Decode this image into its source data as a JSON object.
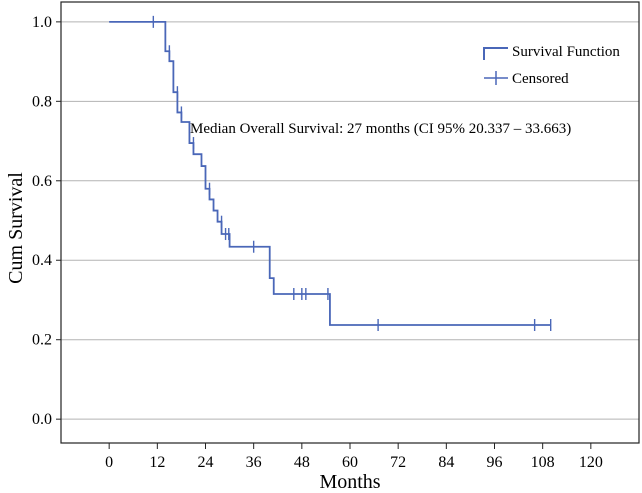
{
  "colors": {
    "line": "#4a67b8",
    "grid": "#b3b3b3",
    "frame": "#222222",
    "background": "#ffffff"
  },
  "chart_data": {
    "type": "line",
    "subtype": "kaplan-meier",
    "title": "",
    "xlabel": "Months",
    "ylabel": "Cum Survival",
    "xlim": [
      -12,
      132
    ],
    "ylim": [
      -0.06,
      1.05
    ],
    "x_ticks": [
      0,
      12,
      24,
      36,
      48,
      60,
      72,
      84,
      96,
      108,
      120
    ],
    "x_tick_labels": [
      "0",
      "12",
      "24",
      "36",
      "48",
      "60",
      "72",
      "84",
      "96",
      "108",
      "120"
    ],
    "y_ticks": [
      0.0,
      0.2,
      0.4,
      0.6,
      0.8,
      1.0
    ],
    "y_tick_labels": [
      "0.0",
      "0.2",
      "0.4",
      "0.6",
      "0.8",
      "1.0"
    ],
    "grid": "horizontal",
    "legend": {
      "position": "top-right",
      "entries": [
        "Survival Function",
        "Censored"
      ]
    },
    "annotation": "Median Overall Survival: 27 months (CI 95% 20.337 – 33.663)",
    "series": [
      {
        "name": "Survival Function",
        "steps": [
          {
            "x": 0,
            "y": 1.0
          },
          {
            "x": 14,
            "y": 0.926
          },
          {
            "x": 15,
            "y": 0.901
          },
          {
            "x": 16,
            "y": 0.823
          },
          {
            "x": 17,
            "y": 0.772
          },
          {
            "x": 18,
            "y": 0.748
          },
          {
            "x": 20,
            "y": 0.695
          },
          {
            "x": 21,
            "y": 0.667
          },
          {
            "x": 23,
            "y": 0.637
          },
          {
            "x": 24,
            "y": 0.58
          },
          {
            "x": 25,
            "y": 0.553
          },
          {
            "x": 26,
            "y": 0.525
          },
          {
            "x": 27,
            "y": 0.497
          },
          {
            "x": 28,
            "y": 0.466
          },
          {
            "x": 30,
            "y": 0.434
          },
          {
            "x": 40,
            "y": 0.355
          },
          {
            "x": 41,
            "y": 0.315
          },
          {
            "x": 55,
            "y": 0.237
          }
        ],
        "end_x": 110
      },
      {
        "name": "Censored",
        "points": [
          {
            "x": 11,
            "y": 1.0
          },
          {
            "x": 15,
            "y": 0.926
          },
          {
            "x": 17,
            "y": 0.823
          },
          {
            "x": 18,
            "y": 0.772
          },
          {
            "x": 21,
            "y": 0.695
          },
          {
            "x": 25,
            "y": 0.58
          },
          {
            "x": 28,
            "y": 0.497
          },
          {
            "x": 29,
            "y": 0.466
          },
          {
            "x": 29.8,
            "y": 0.466
          },
          {
            "x": 36,
            "y": 0.434
          },
          {
            "x": 46,
            "y": 0.315
          },
          {
            "x": 48,
            "y": 0.315
          },
          {
            "x": 49,
            "y": 0.315
          },
          {
            "x": 54.5,
            "y": 0.315
          },
          {
            "x": 67,
            "y": 0.237
          },
          {
            "x": 106,
            "y": 0.237
          },
          {
            "x": 110,
            "y": 0.237
          }
        ]
      }
    ]
  }
}
